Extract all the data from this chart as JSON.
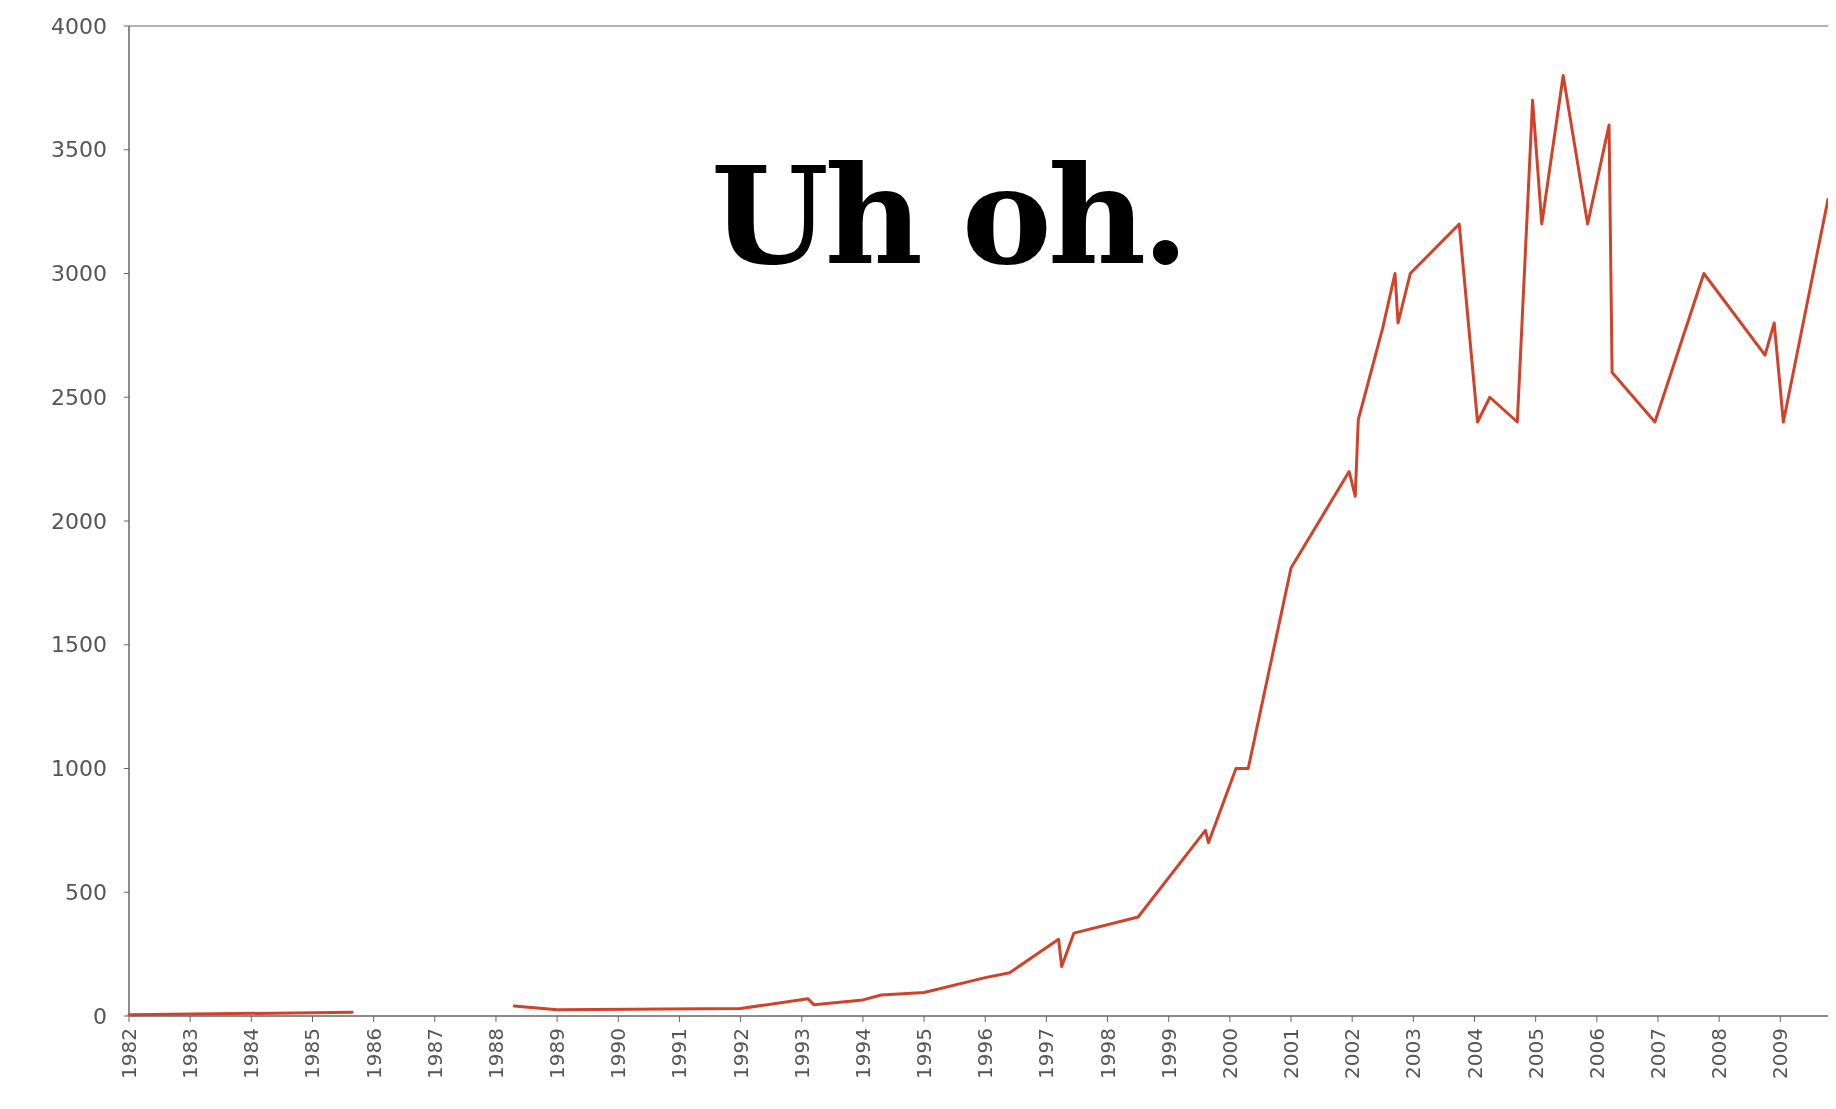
{
  "chart_data": {
    "type": "line",
    "title": "Uh oh.",
    "x": [
      1982,
      1985.65,
      1986,
      1988.3,
      1989,
      1992,
      1993.1,
      1993.2,
      1994,
      1994.3,
      1995,
      1996,
      1996.4,
      1997.2,
      1997.25,
      1997.45,
      1998.5,
      1999.6,
      1999.65,
      2000.1,
      2000.3,
      2001,
      2001.95,
      2002.05,
      2002.1,
      2002.5,
      2002.7,
      2002.75,
      2002.95,
      2003.75,
      2004.05,
      2004.25,
      2004.7,
      2004.95,
      2005.1,
      2005.45,
      2005.85,
      2006.2,
      2006.25,
      2006.95,
      2007.75,
      2008.75,
      2008.9,
      2009.05,
      2009.78
    ],
    "series": [
      {
        "color": "#d0432a",
        "values": [
          5,
          15,
          null,
          40,
          25,
          30,
          70,
          45,
          65,
          85,
          95,
          155,
          175,
          310,
          200,
          335,
          400,
          750,
          700,
          1000,
          1000,
          1810,
          2200,
          2100,
          2410,
          2780,
          3000,
          2800,
          3000,
          3200,
          2400,
          2500,
          2400,
          3700,
          3200,
          3800,
          3200,
          3600,
          2600,
          2400,
          3000,
          2670,
          2800,
          2400,
          3300
        ]
      }
    ],
    "xlim": [
      1982,
      2009.78
    ],
    "xticks": [
      1982,
      1983,
      1984,
      1985,
      1986,
      1987,
      1988,
      1989,
      1990,
      1991,
      1992,
      1993,
      1994,
      1995,
      1996,
      1997,
      1998,
      1999,
      2000,
      2001,
      2002,
      2003,
      2004,
      2005,
      2006,
      2007,
      2008,
      2009
    ],
    "ylim": [
      0,
      4000
    ],
    "yticks": [
      0,
      500,
      1000,
      1500,
      2000,
      2500,
      3000,
      3500,
      4000
    ],
    "grid": false,
    "marker": "none",
    "line_style": "solid"
  }
}
